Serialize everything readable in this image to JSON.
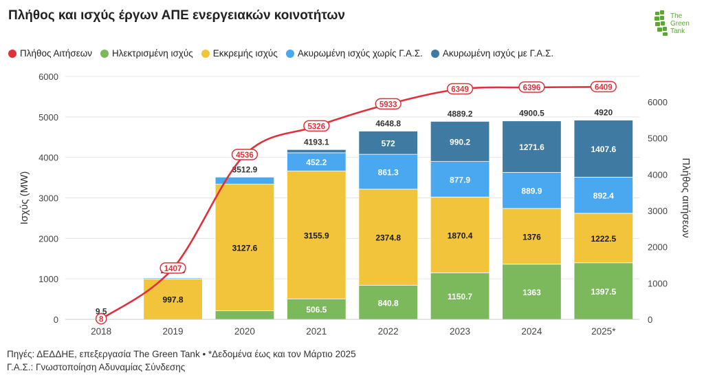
{
  "title": "Πλήθος και ισχύς έργων ΑΠΕ ενεργειακών κοινοτήτων",
  "logo": {
    "line1": "The",
    "line2": "Green",
    "line3": "Tank",
    "color": "#5aa832"
  },
  "footer": {
    "line1": "Πηγές: ΔΕΔΔΗΕ, επεξεργασία The Green Tank • *Δεδομένα έως και τον Μάρτιο 2025",
    "line2": "Γ.Α.Σ.: Γνωστοποίηση Αδυναμίας Σύνδεσης"
  },
  "chart_data": {
    "type": "bar",
    "stacked": true,
    "categories": [
      "2018",
      "2019",
      "2020",
      "2021",
      "2022",
      "2023",
      "2024",
      "2025*"
    ],
    "ylabel": "Ισχύς (MW)",
    "y2label": "Πλήθος αιτήσεων",
    "ylim": [
      0,
      6000
    ],
    "yticks": [
      0,
      1000,
      2000,
      3000,
      4000,
      5000,
      6000
    ],
    "y2lim": [
      0,
      6700
    ],
    "y2ticks": [
      0,
      1000,
      2000,
      3000,
      4000,
      5000,
      6000
    ],
    "grid": true,
    "legend_position": "top-left",
    "series": [
      {
        "name": "Ηλεκτρισμένη ισχύς",
        "color": "#7cb85c",
        "values": [
          0,
          2,
          211,
          506.5,
          840.8,
          1150.7,
          1363,
          1397.5
        ],
        "labels": [
          "",
          "",
          "",
          "506.5",
          "840.8",
          "1150.7",
          "1363",
          "1397.5"
        ]
      },
      {
        "name": "Εκκρεμής ισχύς",
        "color": "#f2c43c",
        "values": [
          9.5,
          997.8,
          3127.6,
          3155.9,
          2374.8,
          1870.4,
          1376,
          1222.5
        ],
        "labels": [
          "",
          "997.8",
          "3127.6",
          "3155.9",
          "2374.8",
          "1870.4",
          "1376",
          "1222.5"
        ]
      },
      {
        "name": "Ακυρωμένη ισχύς χωρίς Γ.Α.Σ.",
        "color": "#4aa8f0",
        "values": [
          0,
          23.1,
          174.3,
          452.2,
          861.3,
          877.9,
          889.9,
          892.4
        ],
        "labels": [
          "",
          "",
          "",
          "452.2",
          "861.3",
          "877.9",
          "889.9",
          "892.4"
        ]
      },
      {
        "name": "Ακυρωμένη ισχύς με Γ.Α.Σ.",
        "color": "#3f7aa3",
        "values": [
          0,
          0,
          0,
          78.5,
          572,
          990.2,
          1271.6,
          1407.6
        ],
        "labels": [
          "",
          "",
          "",
          "",
          "572",
          "990.2",
          "1271.6",
          "1407.6"
        ]
      }
    ],
    "totals": [
      "9.5",
      "1022.9",
      "3512.9",
      "4193.1",
      "4648.8",
      "4889.2",
      "4900.5",
      "4920"
    ],
    "line": {
      "name": "Πλήθος Αιτήσεων",
      "color": "#e0313a",
      "axis": "right",
      "values": [
        8,
        1407,
        4536,
        5326,
        5933,
        6349,
        6396,
        6409
      ],
      "labels": [
        "8",
        "1407",
        "4536",
        "5326",
        "5933",
        "6349",
        "6396",
        "6409"
      ]
    }
  }
}
